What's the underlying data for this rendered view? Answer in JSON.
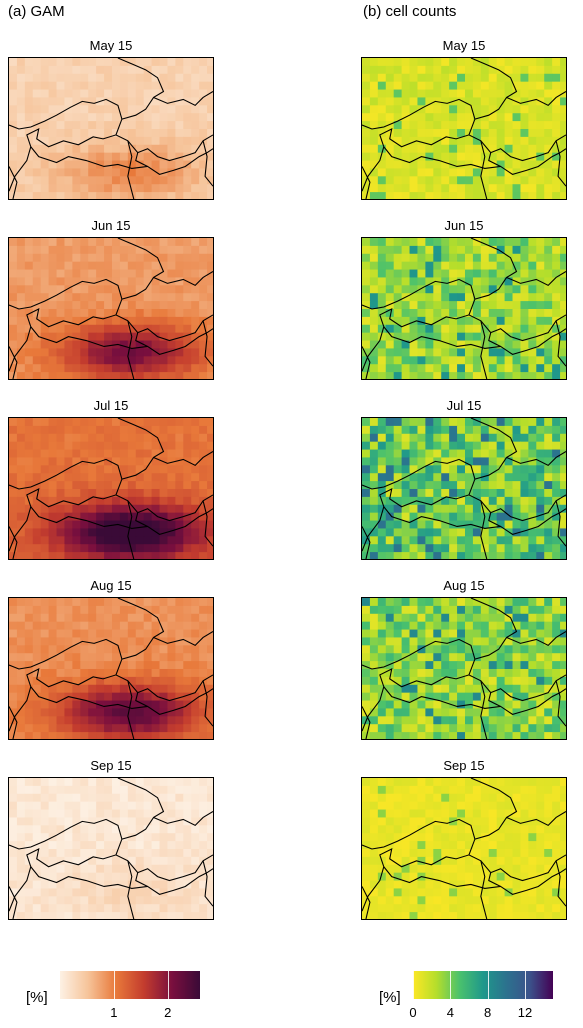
{
  "columns": [
    {
      "title": "(a) GAM",
      "scheme": "gam"
    },
    {
      "title": "(b) cell counts",
      "scheme": "counts"
    }
  ],
  "panels": [
    "May 15",
    "Jun 15",
    "Jul 15",
    "Aug 15",
    "Sep 15"
  ],
  "intensity": {
    "gam": [
      0.25,
      0.55,
      0.75,
      0.6,
      0.08
    ],
    "counts": [
      0.15,
      0.35,
      0.5,
      0.4,
      0.08
    ]
  },
  "colors": {
    "gam_ramp": [
      "#fdf1e4",
      "#f6c49a",
      "#e8793a",
      "#c33c2e",
      "#7a0f3e",
      "#3a0a37"
    ],
    "counts_ramp": [
      "#fde725",
      "#b5de2b",
      "#4ac16d",
      "#1f988b",
      "#2c728e",
      "#3b528b",
      "#440154"
    ],
    "border": "#000000"
  },
  "legends": {
    "gam": {
      "unit": "[%]",
      "ticks": [
        "1",
        "2"
      ],
      "tick_values": [
        1,
        2
      ],
      "max": 2.6
    },
    "counts": {
      "unit": "[%]",
      "ticks": [
        "0",
        "4",
        "8",
        "12"
      ],
      "tick_values": [
        0,
        4,
        8,
        12
      ],
      "max": 15
    }
  }
}
